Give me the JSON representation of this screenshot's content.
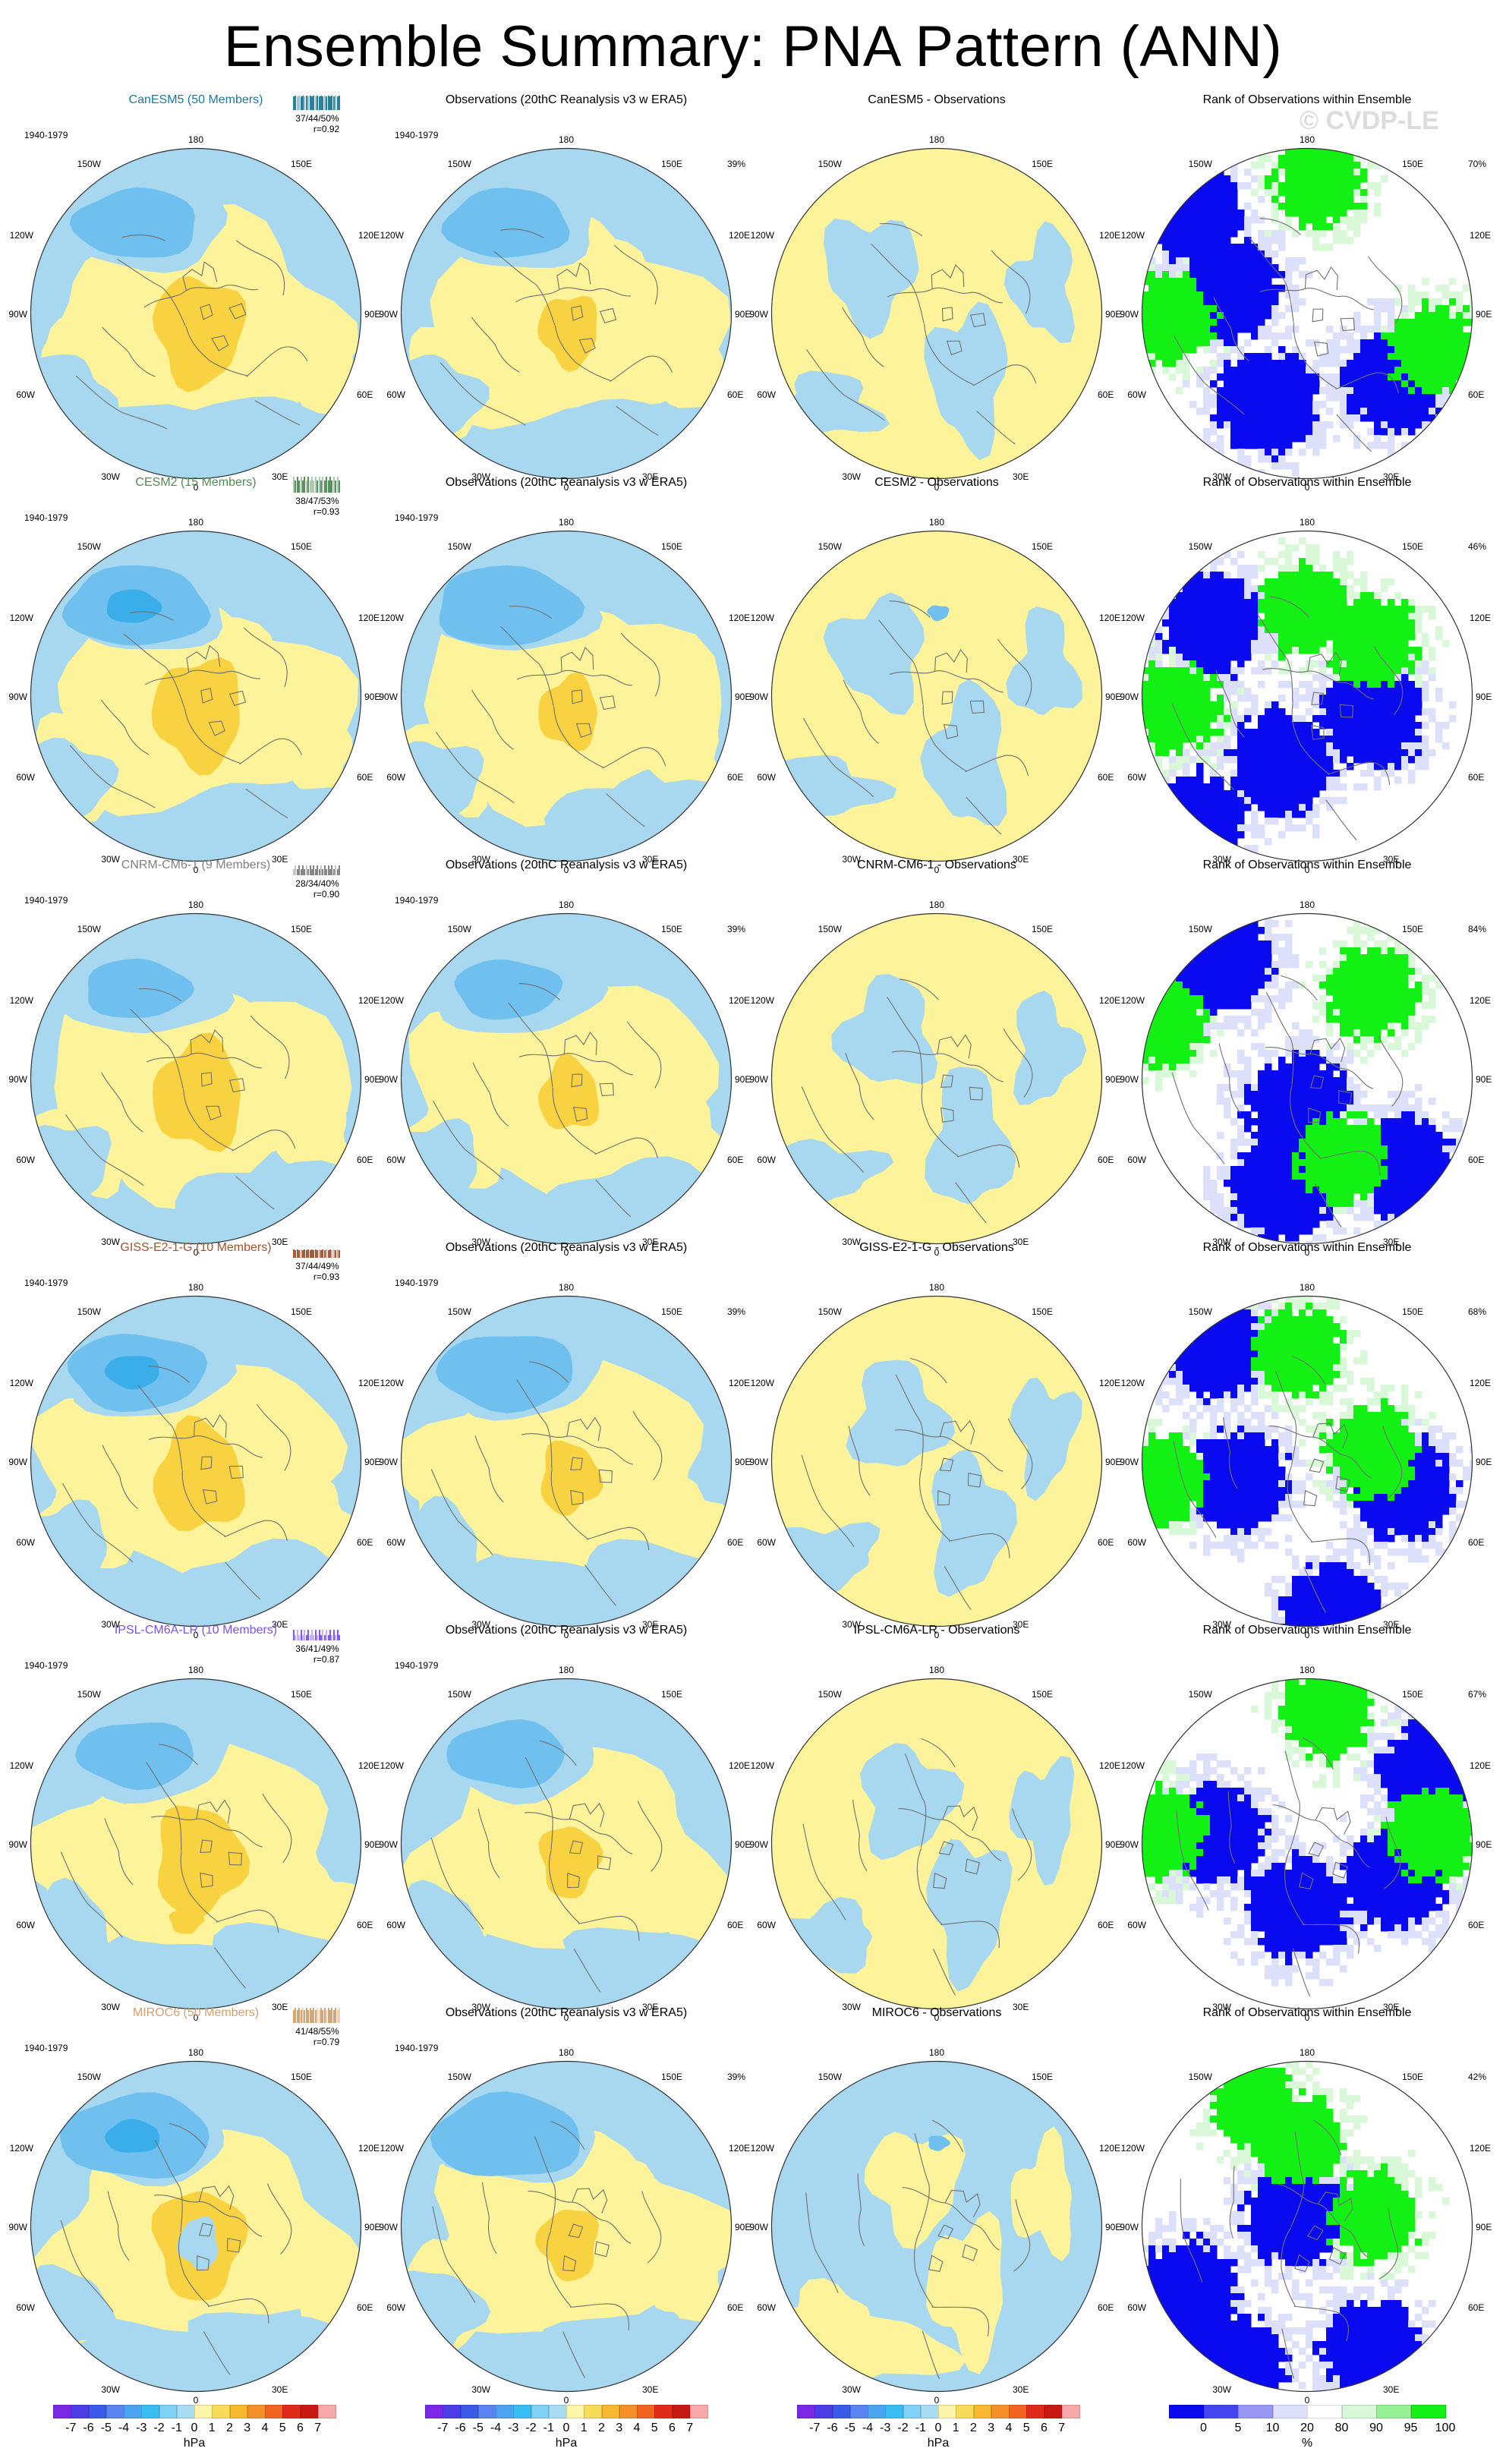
{
  "title": "Ensemble Summary: PNA Pattern (ANN)",
  "watermark": "© CVDP-LE",
  "period": "1940-1979",
  "longitude_labels": {
    "top": "180",
    "upper_left": "150W",
    "upper_right": "150E",
    "left_upper": "120W",
    "right_upper": "120E",
    "left": "90W",
    "right": "90E",
    "left_lower": "60W",
    "right_lower": "60E",
    "lower_left": "30W",
    "lower_right": "30E",
    "bottom": "0"
  },
  "colors": {
    "neg3": "#3aaee8",
    "neg2": "#6fc0ee",
    "neg1": "#a8d8f0",
    "pos1": "#fcf39a",
    "pos2": "#f8d240",
    "pos3": "#f7b820",
    "rank_blue": "#0a0af0",
    "rank_light": "#dde0fb",
    "rank_green": "#13f013",
    "rank_palegreen": "#d8f8d8"
  },
  "rows": [
    {
      "model": "CanESM5 (50 Members)",
      "model_color": "#1a7a9a",
      "stats": "37/44/50%",
      "corr": "r=0.92",
      "obs_title": "Observations (20thC Reanalysis v3 w ERA5)",
      "obs_pct": "39%",
      "diff_title": "CanESM5 - Observations",
      "rank_title": "Rank of Observations within Ensemble",
      "rank_pct": "70%"
    },
    {
      "model": "CESM2 (15 Members)",
      "model_color": "#4f8a55",
      "stats": "38/47/53%",
      "corr": "r=0.93",
      "obs_title": "Observations (20thC Reanalysis v3 w ERA5)",
      "obs_pct": "",
      "diff_title": "CESM2 - Observations",
      "rank_title": "Rank of Observations within Ensemble",
      "rank_pct": "46%"
    },
    {
      "model": "CNRM-CM6-1 (9 Members)",
      "model_color": "#808080",
      "stats": "28/34/40%",
      "corr": "r=0.90",
      "obs_title": "Observations (20thC Reanalysis v3 w ERA5)",
      "obs_pct": "39%",
      "diff_title": "CNRM-CM6-1 - Observations",
      "rank_title": "Rank of Observations within Ensemble",
      "rank_pct": "84%"
    },
    {
      "model": "GISS-E2-1-G (10 Members)",
      "model_color": "#a0522d",
      "stats": "37/44/49%",
      "corr": "r=0.93",
      "obs_title": "Observations (20thC Reanalysis v3 w ERA5)",
      "obs_pct": "39%",
      "diff_title": "GISS-E2-1-G - Observations",
      "rank_title": "Rank of Observations within Ensemble",
      "rank_pct": "68%"
    },
    {
      "model": "IPSL-CM6A-LR (10 Members)",
      "model_color": "#7b4ff0",
      "stats": "36/41/49%",
      "corr": "r=0.87",
      "obs_title": "Observations (20thC Reanalysis v3 w ERA5)",
      "obs_pct": "",
      "diff_title": "IPSL-CM6A-LR - Observations",
      "rank_title": "Rank of Observations within Ensemble",
      "rank_pct": "67%"
    },
    {
      "model": "MIROC6 (50 Members)",
      "model_color": "#d2a06e",
      "stats": "41/48/55%",
      "corr": "r=0.79",
      "obs_title": "Observations (20thC Reanalysis v3 w ERA5)",
      "obs_pct": "39%",
      "diff_title": "MIROC6 - Observations",
      "rank_title": "Rank of Observations within Ensemble",
      "rank_pct": "42%"
    }
  ],
  "colorbar_hpa": {
    "unit": "hPa",
    "ticks": [
      "-7",
      "-6",
      "-5",
      "-4",
      "-3",
      "-2",
      "-1",
      "0",
      "1",
      "2",
      "3",
      "4",
      "5",
      "6",
      "7"
    ],
    "colors": [
      "#7a28e6",
      "#4b3ce6",
      "#3c5ae8",
      "#5a82f0",
      "#4aa4f0",
      "#38bef2",
      "#7fd2f4",
      "#a8dcf2",
      "#fcf4a8",
      "#f8dc58",
      "#f8b830",
      "#f59028",
      "#f06420",
      "#e02a1a",
      "#c81814",
      "#f7a8a8"
    ]
  },
  "colorbar_rank": {
    "unit": "%",
    "ticks": [
      "0",
      "5",
      "10",
      "20",
      "80",
      "90",
      "95",
      "100"
    ],
    "colors": [
      "#0a0af0",
      "#4646f0",
      "#9898f4",
      "#dde0fb",
      "#ffffff",
      "#d8f8d8",
      "#96f096",
      "#13f013"
    ]
  }
}
